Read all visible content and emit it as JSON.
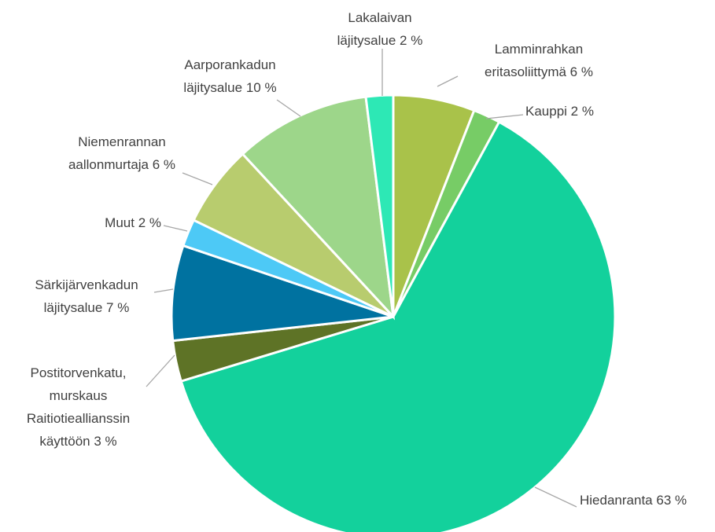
{
  "chart_data": {
    "type": "pie",
    "categories": [
      "Lamminrahkan eritasoliittymä",
      "Kauppi",
      "Hiedanranta",
      "Postitorvenkatu, murskaus Raitiotieallianssin käyttöön",
      "Särkijärvenkadun läjitysalue",
      "Muut",
      "Niemenrannan aallonmurtaja",
      "Aarporankadun läjitysalue",
      "Lakalaivan läjitysalue"
    ],
    "values": [
      6,
      2,
      63,
      3,
      7,
      2,
      6,
      10,
      2
    ],
    "value_labels": [
      "6 %",
      "2 %",
      "63 %",
      "3 %",
      "7 %",
      "2 %",
      "6 %",
      "10 %",
      "2 %"
    ],
    "colors": [
      "#a9c24a",
      "#77cc66",
      "#13d19c",
      "#5e7326",
      "#0072a0",
      "#4dc9f6",
      "#b8cc6e",
      "#9dd68a",
      "#2de8b5"
    ]
  }
}
